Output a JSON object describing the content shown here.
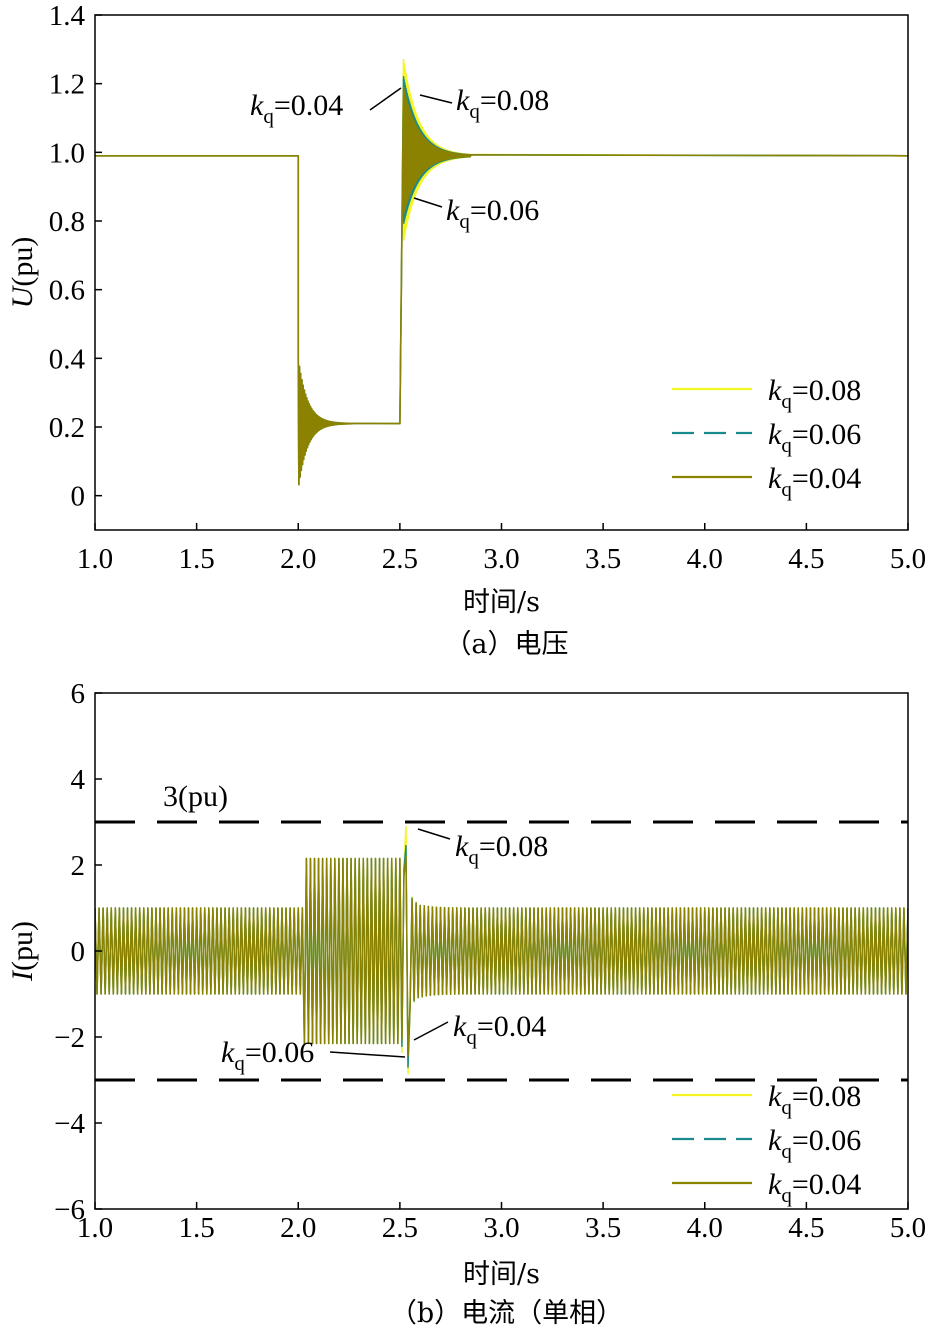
{
  "colors": {
    "kq008": "#f5f522",
    "kq006": "#1a8a8f",
    "kq004": "#8a8200",
    "ref": "#000000"
  },
  "chart_data": [
    {
      "type": "line",
      "panel": "a",
      "caption": "（a）电压",
      "xlabel": "时间/s",
      "ylabel_var": "U",
      "ylabel_unit": "(pu)",
      "xlim": [
        1.0,
        5.0
      ],
      "ylim": [
        -0.1,
        1.4
      ],
      "xticks": [
        "1.0",
        "1.5",
        "2.0",
        "2.5",
        "3.0",
        "3.5",
        "4.0",
        "4.5",
        "5.0"
      ],
      "yticks": [
        "0",
        "0.2",
        "0.4",
        "0.6",
        "0.8",
        "1.0",
        "1.2",
        "1.4"
      ],
      "ytick_values": [
        0,
        0.2,
        0.4,
        0.6,
        0.8,
        1.0,
        1.2,
        1.4
      ],
      "legend_position": "bottom-right",
      "series": [
        {
          "name_var": "k",
          "name_sub": "q",
          "name_val": "=0.08",
          "style": "solid",
          "color_key": "kq008",
          "steady": 0.99,
          "dip_time": 2.0,
          "recover_time": 2.5,
          "sag_level": 0.21,
          "sag_osc_amp": 0.19,
          "peak_max": 1.27,
          "peak_min": 0.74
        },
        {
          "name_var": "k",
          "name_sub": "q",
          "name_val": "=0.06",
          "style": "dashed",
          "color_key": "kq006",
          "steady": 0.99,
          "dip_time": 2.0,
          "recover_time": 2.5,
          "sag_level": 0.21,
          "sag_osc_amp": 0.19,
          "peak_max": 1.22,
          "peak_min": 0.79
        },
        {
          "name_var": "k",
          "name_sub": "q",
          "name_val": "=0.04",
          "style": "solid",
          "color_key": "kq004",
          "steady": 0.99,
          "dip_time": 2.0,
          "recover_time": 2.5,
          "sag_level": 0.21,
          "sag_osc_amp": 0.19,
          "peak_max": 1.19,
          "peak_min": 0.82
        }
      ],
      "annotations": [
        {
          "var": "k",
          "sub": "q",
          "val": "=0.04"
        },
        {
          "var": "k",
          "sub": "q",
          "val": "=0.08"
        },
        {
          "var": "k",
          "sub": "q",
          "val": "=0.06"
        }
      ]
    },
    {
      "type": "line",
      "panel": "b",
      "caption": "（b）电流（单相）",
      "xlabel": "时间/s",
      "ylabel_var": "I",
      "ylabel_unit": "(pu)",
      "xlim": [
        1.0,
        5.0
      ],
      "ylim": [
        -6,
        6
      ],
      "xticks": [
        "1.0",
        "1.5",
        "2.0",
        "2.5",
        "3.0",
        "3.5",
        "4.0",
        "4.5",
        "5.0"
      ],
      "yticks": [
        "−6",
        "−4",
        "−2",
        "0",
        "2",
        "4",
        "6"
      ],
      "ytick_values": [
        -6,
        -4,
        -2,
        0,
        2,
        4,
        6
      ],
      "limit_value": 3,
      "limit_label": "3(pu)",
      "legend_position": "bottom-right",
      "series": [
        {
          "name_var": "k",
          "name_sub": "q",
          "name_val": "=0.08",
          "style": "solid",
          "color_key": "kq008",
          "steady_amp": 1.0,
          "fault_amp": 2.15,
          "peak": 2.9,
          "trough": -2.85
        },
        {
          "name_var": "k",
          "name_sub": "q",
          "name_val": "=0.06",
          "style": "dashed",
          "color_key": "kq006",
          "steady_amp": 1.0,
          "fault_amp": 2.15,
          "peak": 2.45,
          "trough": -2.7
        },
        {
          "name_var": "k",
          "name_sub": "q",
          "name_val": "=0.04",
          "style": "solid",
          "color_key": "kq004",
          "steady_amp": 1.0,
          "fault_amp": 2.15,
          "peak": 2.2,
          "trough": -2.45
        }
      ],
      "annotations": [
        {
          "var": "k",
          "sub": "q",
          "val": "=0.08"
        },
        {
          "var": "k",
          "sub": "q",
          "val": "=0.04"
        },
        {
          "var": "k",
          "sub": "q",
          "val": "=0.06"
        }
      ]
    }
  ]
}
